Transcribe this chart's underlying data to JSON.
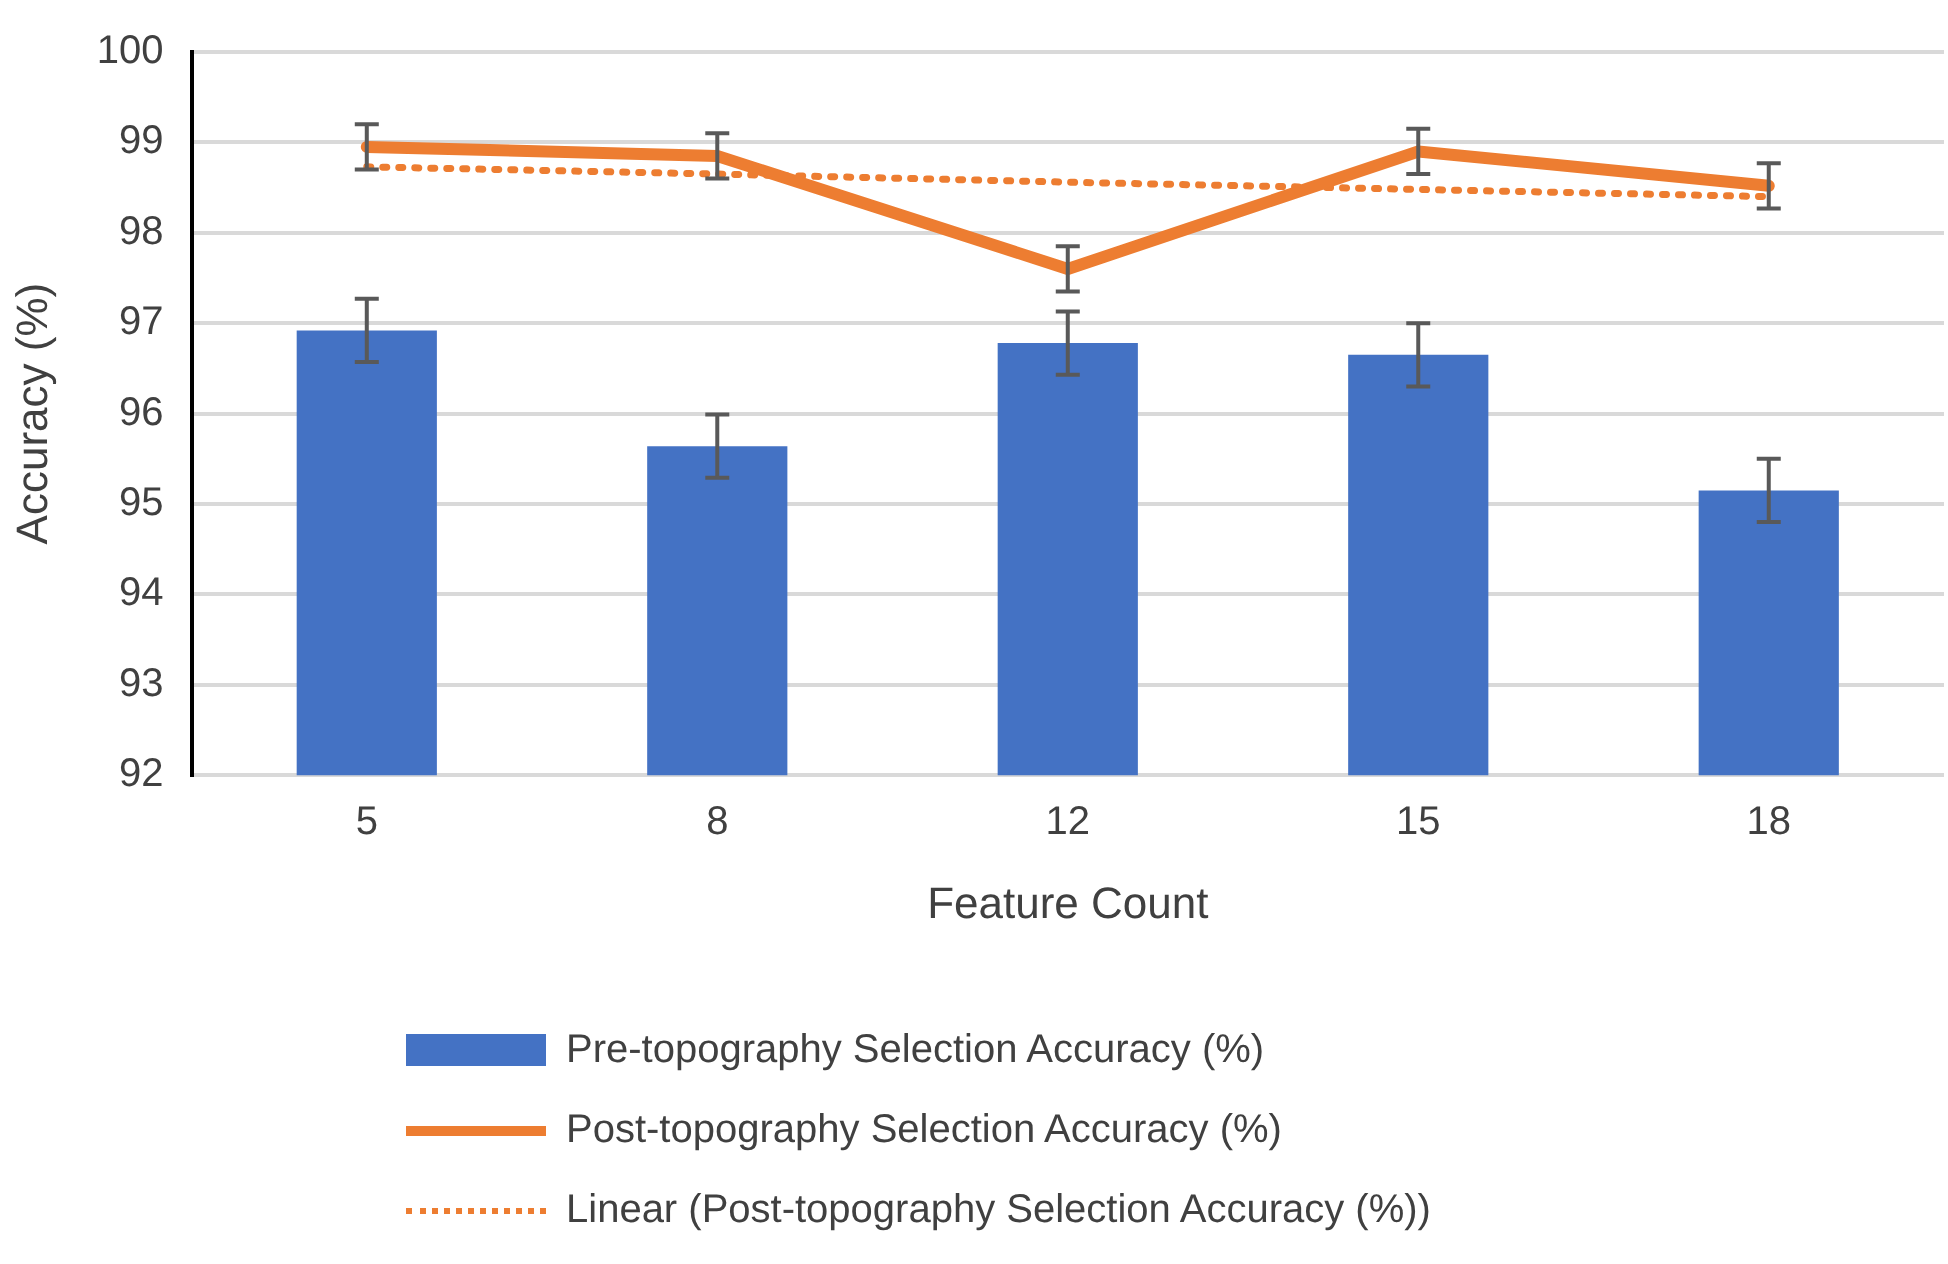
{
  "chart_data": {
    "type": "bar",
    "xlabel": "Feature Count",
    "ylabel": "Accuracy (%)",
    "categories": [
      "5",
      "8",
      "12",
      "15",
      "18"
    ],
    "series": [
      {
        "name": "Pre-topography Selection Accuracy (%)",
        "color": "#4472c4",
        "values": [
          96.92,
          95.64,
          96.78,
          96.65,
          95.15
        ],
        "errors": [
          0.35,
          0.35,
          0.35,
          0.35,
          0.35
        ]
      },
      {
        "name": "Post-topography Selection Accuracy (%)",
        "type": "line",
        "color": "#ed7d31",
        "line_style": "solid",
        "values": [
          98.95,
          98.85,
          97.6,
          98.9,
          98.52
        ],
        "errors": [
          0.25,
          0.25,
          0.25,
          0.25,
          0.25
        ]
      },
      {
        "name": "Linear (Post-topography Selection Accuracy (%))",
        "type": "line",
        "color": "#ed7d31",
        "line_style": "dotted",
        "x": [
          "5",
          "8",
          "12",
          "15",
          "18"
        ],
        "values": [
          98.73,
          98.65,
          98.56,
          98.48,
          98.4
        ]
      }
    ],
    "ylim": [
      92,
      100
    ],
    "yticks": [
      92,
      93,
      94,
      95,
      96,
      97,
      98,
      99,
      100
    ],
    "grid": "y",
    "legend": "bottom",
    "marker": "none"
  }
}
